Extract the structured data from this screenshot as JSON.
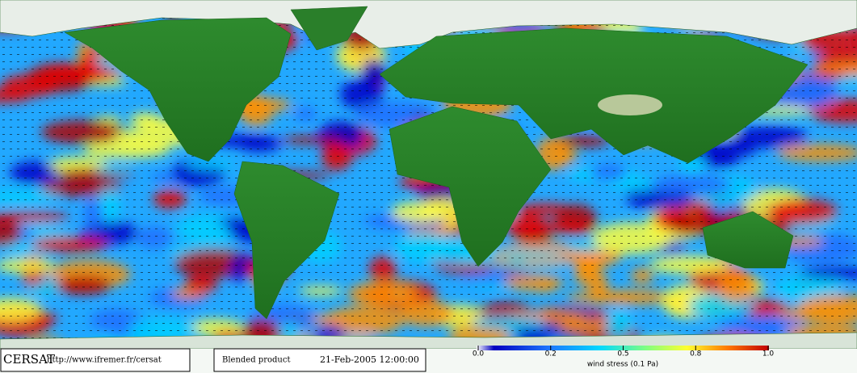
{
  "footer": {
    "logo": "CERSAT",
    "url": "http://www.ifremer.fr/cersat",
    "product": "Blended product",
    "date": "21-Feb-2005 12:00:00"
  },
  "colorbar": {
    "label": "wind stress (0.1 Pa)",
    "ticks": [
      {
        "value": 0,
        "label": "0.0"
      },
      {
        "value": 0.2,
        "label": "0.2"
      },
      {
        "value": 0.5,
        "label": "0.5"
      },
      {
        "value": 0.8,
        "label": "0.8"
      },
      {
        "value": 1,
        "label": "1.0"
      }
    ]
  }
}
